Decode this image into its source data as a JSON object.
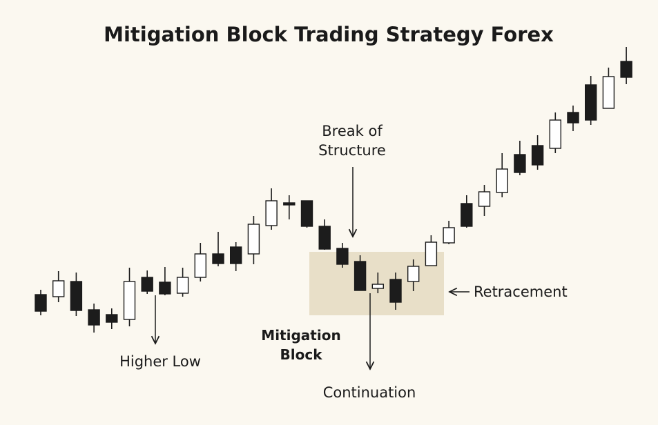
{
  "chart_data": {
    "type": "candlestick",
    "title": "Mitigation Block Trading Strategy Forex",
    "up_color": "#ffffff",
    "down_color": "#1c1c1c",
    "categories": [
      null,
      null,
      null,
      null,
      null,
      null,
      null,
      null,
      null,
      null,
      null,
      null,
      null,
      null,
      null,
      null,
      null,
      null,
      null,
      null,
      null,
      null,
      null,
      null,
      null,
      null,
      null,
      null,
      null,
      null,
      null,
      null,
      null,
      null
    ],
    "open": [
      189,
      186,
      208,
      167,
      160,
      153,
      214,
      207,
      191,
      214,
      248,
      258,
      248,
      289,
      322,
      325,
      288,
      256,
      237,
      198,
      211,
      208,
      231,
      264,
      321,
      317,
      337,
      392,
      405,
      401,
      453,
      493,
      459,
      527
    ],
    "high": [
      196,
      223,
      221,
      176,
      169,
      228,
      224,
      229,
      228,
      264,
      280,
      265,
      303,
      343,
      333,
      325,
      298,
      264,
      246,
      221,
      221,
      240,
      275,
      296,
      333,
      348,
      394,
      412,
      420,
      453,
      463,
      506,
      518,
      548
    ],
    "low": [
      159,
      178,
      158,
      134,
      139,
      143,
      190,
      188,
      186,
      208,
      230,
      223,
      233,
      283,
      298,
      286,
      254,
      228,
      195,
      191,
      167,
      194,
      231,
      262,
      286,
      303,
      330,
      362,
      370,
      394,
      426,
      435,
      459,
      494
    ],
    "close": [
      165,
      209,
      166,
      145,
      149,
      208,
      194,
      190,
      214,
      248,
      234,
      234,
      291,
      325,
      319,
      288,
      255,
      233,
      195,
      204,
      178,
      230,
      265,
      286,
      288,
      338,
      371,
      366,
      377,
      442,
      438,
      442,
      505,
      504
    ],
    "annotations": [
      {
        "text": [
          "Break of",
          "Structure"
        ]
      },
      {
        "text": [
          "Retracement"
        ]
      },
      {
        "text": [
          "Higher Low"
        ]
      },
      {
        "text": [
          "Mitigation",
          "Block"
        ]
      },
      {
        "text": [
          "Continuation"
        ]
      }
    ]
  }
}
